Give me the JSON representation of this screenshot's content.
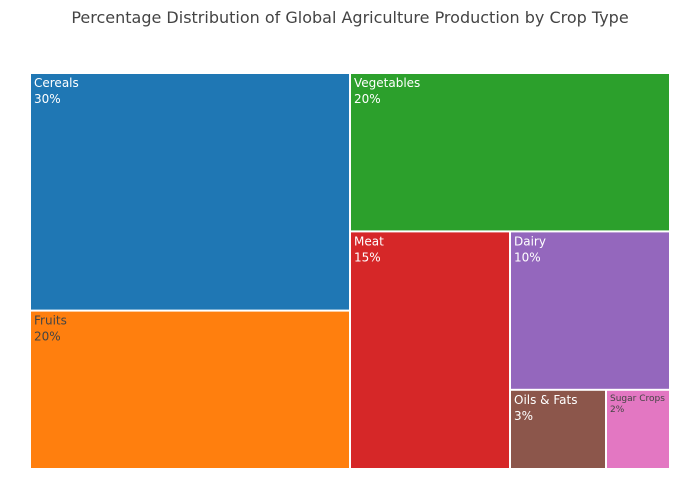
{
  "chart_data": {
    "type": "treemap",
    "title": "Percentage Distribution of Global Agriculture Production by Crop Type",
    "items": [
      {
        "label": "Cereals",
        "value": 30,
        "value_text": "30%",
        "color": "#1f77b4",
        "text_color": "#ffffff"
      },
      {
        "label": "Fruits",
        "value": 20,
        "value_text": "20%",
        "color": "#ff7f0e",
        "text_color": "#444444"
      },
      {
        "label": "Vegetables",
        "value": 20,
        "value_text": "20%",
        "color": "#2ca02c",
        "text_color": "#ffffff"
      },
      {
        "label": "Meat",
        "value": 15,
        "value_text": "15%",
        "color": "#d62728",
        "text_color": "#ffffff"
      },
      {
        "label": "Dairy",
        "value": 10,
        "value_text": "10%",
        "color": "#9467bd",
        "text_color": "#ffffff"
      },
      {
        "label": "Oils & Fats",
        "value": 3,
        "value_text": "3%",
        "color": "#8c564b",
        "text_color": "#ffffff"
      },
      {
        "label": "Sugar Crops",
        "value": 2,
        "value_text": "2%",
        "color": "#e377c2",
        "text_color": "#444444"
      }
    ]
  }
}
